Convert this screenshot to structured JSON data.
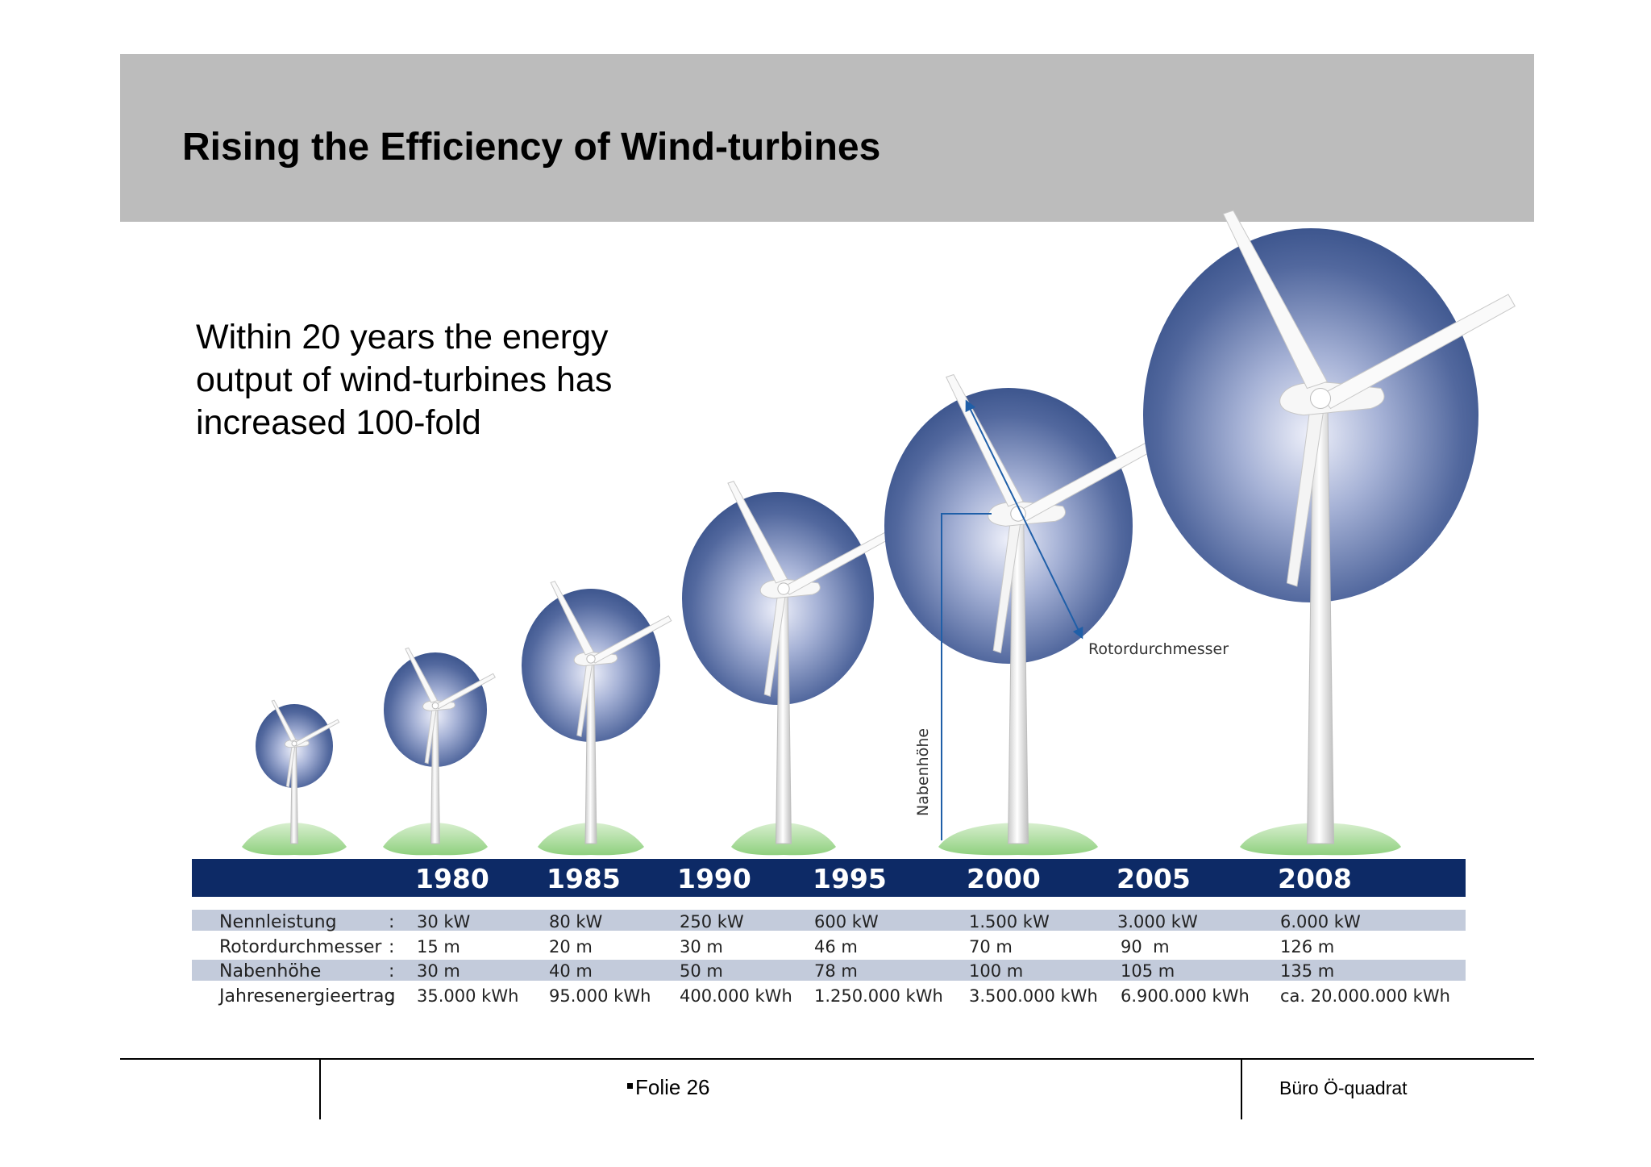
{
  "slide": {
    "title": "Rising the Efficiency of Wind-turbines",
    "intro_lines": [
      "Within 20 years the energy",
      "output of wind-turbines has",
      "increased 100-fold"
    ]
  },
  "diagram": {
    "label_rotor": "Rotordurchmesser",
    "label_hub": "Nabenhöhe",
    "row_labels": [
      "Nennleistung",
      "Rotordurchmesser",
      "Nabenhöhe",
      "Jahresenergieertrag"
    ],
    "colon": ":",
    "years": [
      "1980",
      "1985",
      "1990",
      "1995",
      "2000",
      "2005",
      "2008"
    ],
    "turbines": [
      {
        "year": "1980",
        "power": "30 kW",
        "rotor": "15 m",
        "hub": "30 m",
        "energy": "35.000 kWh"
      },
      {
        "year": "1985",
        "power": "80 kW",
        "rotor": "20 m",
        "hub": "40 m",
        "energy": "95.000 kWh"
      },
      {
        "year": "1990",
        "power": "250 kW",
        "rotor": "30 m",
        "hub": "50 m",
        "energy": "400.000 kWh"
      },
      {
        "year": "1995",
        "power": "600 kW",
        "rotor": "46 m",
        "hub": "78 m",
        "energy": "1.250.000 kWh"
      },
      {
        "year": "2000",
        "power": "1.500 kW",
        "rotor": "70 m",
        "hub": "100 m",
        "energy": "3.500.000 kWh"
      },
      {
        "year": "2005",
        "power": "3.000 kW",
        "rotor": "90  m",
        "hub": "105 m",
        "energy": "6.900.000 kWh"
      },
      {
        "year": "2008",
        "power": "6.000 kW",
        "rotor": "126 m",
        "hub": "135 m",
        "energy": "ca. 20.000.000 kWh"
      }
    ],
    "colors": {
      "band": "#0d2a66",
      "row_stripe": "#c3cbdb",
      "disc_dark": "#334d86",
      "disc_light": "#eef0fa",
      "ground": "#9fd98f",
      "arrow": "#1f5fa8"
    }
  },
  "footer": {
    "page_label": "Folie 26",
    "organization": "Büro Ö-quadrat"
  }
}
